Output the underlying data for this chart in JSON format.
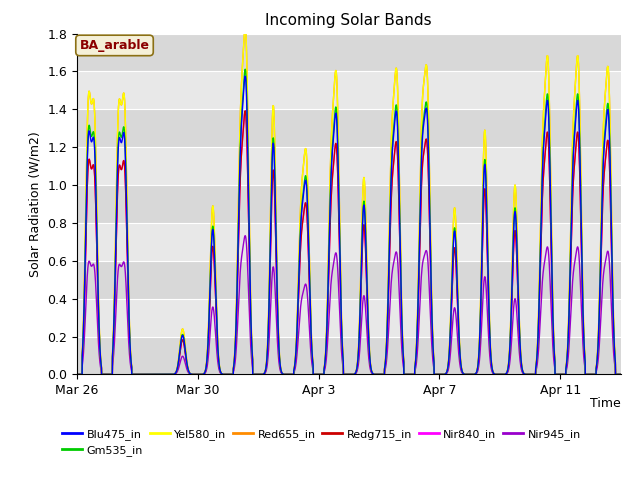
{
  "title": "Incoming Solar Bands",
  "xlabel": "Time",
  "ylabel": "Solar Radiation (W/m2)",
  "ylim": [
    0,
    1.8
  ],
  "annotation_text": "BA_arable",
  "annotation_color": "#8B0000",
  "annotation_bg": "#f5f0d8",
  "annotation_border": "#8B7014",
  "plot_bg": "#e8e8e8",
  "series_order": [
    "Nir945_in",
    "Nir840_in",
    "Redg715_in",
    "Red655_in",
    "Yel580_in",
    "Gm535_in",
    "Blu475_in"
  ],
  "series": [
    {
      "name": "Blu475_in",
      "color": "#0000ff",
      "lw": 1.0
    },
    {
      "name": "Gm535_in",
      "color": "#00cc00",
      "lw": 1.0
    },
    {
      "name": "Yel580_in",
      "color": "#ffff00",
      "lw": 1.0
    },
    {
      "name": "Red655_in",
      "color": "#ff8c00",
      "lw": 1.0
    },
    {
      "name": "Redg715_in",
      "color": "#cc0000",
      "lw": 1.0
    },
    {
      "name": "Nir840_in",
      "color": "#ff00ff",
      "lw": 1.0
    },
    {
      "name": "Nir945_in",
      "color": "#9900cc",
      "lw": 1.0
    }
  ],
  "legend_series": [
    {
      "name": "Blu475_in",
      "color": "#0000ff"
    },
    {
      "name": "Gm535_in",
      "color": "#00cc00"
    },
    {
      "name": "Yel580_in",
      "color": "#ffff00"
    },
    {
      "name": "Red655_in",
      "color": "#ff8c00"
    },
    {
      "name": "Redg715_in",
      "color": "#cc0000"
    },
    {
      "name": "Nir840_in",
      "color": "#ff00ff"
    },
    {
      "name": "Nir945_in",
      "color": "#9900cc"
    }
  ],
  "xtick_labels": [
    "Mar 26",
    "Mar 30",
    "Apr 3",
    "Apr 7",
    "Apr 11"
  ],
  "xtick_positions": [
    0,
    4,
    8,
    12,
    16
  ],
  "ytick_positions": [
    0.0,
    0.2,
    0.4,
    0.6,
    0.8,
    1.0,
    1.2,
    1.4,
    1.6,
    1.8
  ],
  "grid_color": "#ffffff",
  "band_scales": {
    "Yel580_in": 1.0,
    "Red655_in": 1.0,
    "Redg715_in": 0.76,
    "Nir840_in": 0.76,
    "Nir945_in": 0.4,
    "Blu475_in": 0.86,
    "Gm535_in": 0.88
  },
  "day_peaks": [
    1.35,
    1.34,
    0.0,
    0.24,
    0.89,
    1.62,
    1.42,
    1.05,
    1.42,
    1.04,
    1.42,
    1.41,
    0.88,
    1.29,
    1.0,
    1.49,
    1.49,
    1.43
  ],
  "num_days": 18,
  "pts_per_day": 200
}
